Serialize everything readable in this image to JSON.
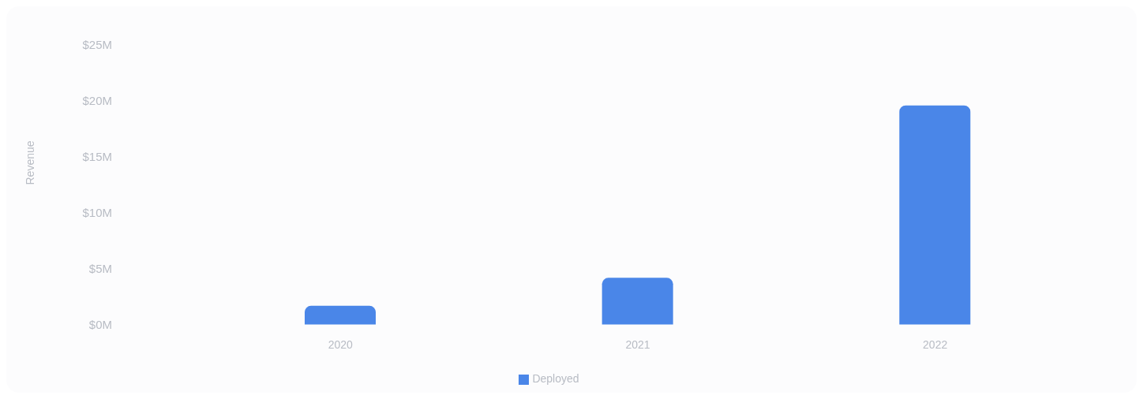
{
  "chart_data": {
    "type": "bar",
    "ylabel": "Revenue",
    "categories": [
      "2020",
      "2021",
      "2022"
    ],
    "series": [
      {
        "name": "Deployed",
        "color": "#4a86e8",
        "values": [
          1.7,
          4.2,
          19.6
        ]
      }
    ],
    "ylim": [
      0,
      25
    ],
    "yticks": [
      {
        "value": 0,
        "label": "$0M"
      },
      {
        "value": 5,
        "label": "$5M"
      },
      {
        "value": 10,
        "label": "$10M"
      },
      {
        "value": 15,
        "label": "$15M"
      },
      {
        "value": 20,
        "label": "$20M"
      },
      {
        "value": 25,
        "label": "$25M"
      }
    ],
    "legend": "bottom"
  }
}
